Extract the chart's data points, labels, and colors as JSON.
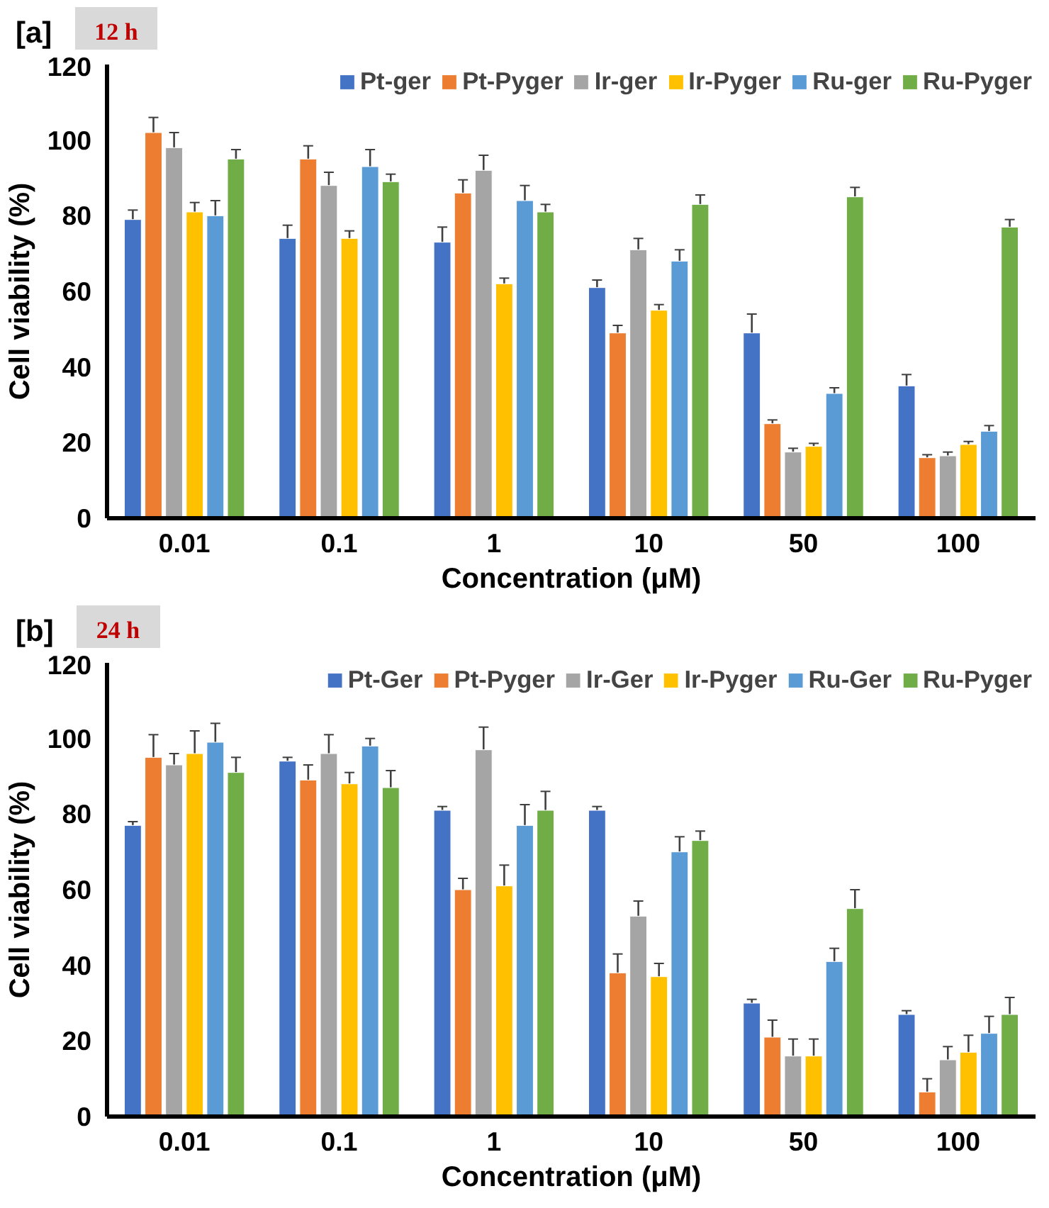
{
  "chart_data": [
    {
      "type": "bar",
      "title": "[a]",
      "subtitle": "12 h",
      "xlabel": "Concentration (μM)",
      "ylabel": "Cell viability (%)",
      "categories": [
        "0.01",
        "0.1",
        "1",
        "10",
        "50",
        "100"
      ],
      "ylim": [
        0,
        120
      ],
      "yticks": [
        0,
        20,
        40,
        60,
        80,
        100,
        120
      ],
      "grid": false,
      "legend": "top",
      "series": [
        {
          "name": "Pt-ger",
          "color": "#4472c4",
          "values": [
            79,
            74,
            73,
            61,
            49,
            35
          ],
          "errors": [
            2.5,
            3.5,
            4,
            2,
            5,
            3
          ]
        },
        {
          "name": "Pt-Pyger",
          "color": "#ed7d31",
          "values": [
            102,
            95,
            86,
            49,
            25,
            16
          ],
          "errors": [
            4,
            3.5,
            3.5,
            2,
            1,
            0.8
          ]
        },
        {
          "name": "Ir-ger",
          "color": "#a5a5a5",
          "values": [
            98,
            88,
            92,
            71,
            17.5,
            16.5
          ],
          "errors": [
            4,
            3.5,
            4,
            3,
            1,
            1
          ]
        },
        {
          "name": "Ir-Pyger",
          "color": "#ffc000",
          "values": [
            81,
            74,
            62,
            55,
            19,
            19.5
          ],
          "errors": [
            2.5,
            2,
            1.5,
            1.5,
            0.8,
            0.8
          ]
        },
        {
          "name": "Ru-ger",
          "color": "#5b9bd5",
          "values": [
            80,
            93,
            84,
            68,
            33,
            23
          ],
          "errors": [
            4,
            4.5,
            4,
            3,
            1.5,
            1.5
          ]
        },
        {
          "name": "Ru-Pyger",
          "color": "#70ad47",
          "values": [
            95,
            89,
            81,
            83,
            85,
            77
          ],
          "errors": [
            2.5,
            2,
            2,
            2.5,
            2.5,
            2
          ]
        }
      ]
    },
    {
      "type": "bar",
      "title": "[b]",
      "subtitle": "24 h",
      "xlabel": "Concentration (μM)",
      "ylabel": "Cell viability (%)",
      "categories": [
        "0.01",
        "0.1",
        "1",
        "10",
        "50",
        "100"
      ],
      "ylim": [
        0,
        120
      ],
      "yticks": [
        0,
        20,
        40,
        60,
        80,
        100,
        120
      ],
      "grid": false,
      "legend": "top",
      "series": [
        {
          "name": "Pt-Ger",
          "color": "#4472c4",
          "values": [
            77,
            94,
            81,
            81,
            30,
            27
          ],
          "errors": [
            1,
            1,
            1,
            1,
            1,
            1
          ]
        },
        {
          "name": "Pt-Pyger",
          "color": "#ed7d31",
          "values": [
            95,
            89,
            60,
            38,
            21,
            6.5
          ],
          "errors": [
            6,
            4,
            3,
            5,
            4.5,
            3.5
          ]
        },
        {
          "name": "Ir-Ger",
          "color": "#a5a5a5",
          "values": [
            93,
            96,
            97,
            53,
            16,
            15
          ],
          "errors": [
            3,
            5,
            6,
            4,
            4.5,
            3.5
          ]
        },
        {
          "name": "Ir-Pyger",
          "color": "#ffc000",
          "values": [
            96,
            88,
            61,
            37,
            16,
            17
          ],
          "errors": [
            6,
            3,
            5.5,
            3.5,
            4.5,
            4.5
          ]
        },
        {
          "name": "Ru-Ger",
          "color": "#5b9bd5",
          "values": [
            99,
            98,
            77,
            70,
            41,
            22
          ],
          "errors": [
            5,
            2,
            5.5,
            4,
            3.5,
            4.5
          ]
        },
        {
          "name": "Ru-Pyger",
          "color": "#70ad47",
          "values": [
            91,
            87,
            81,
            73,
            55,
            27
          ],
          "errors": [
            4,
            4.5,
            5,
            2.5,
            5,
            4.5
          ]
        }
      ]
    }
  ]
}
